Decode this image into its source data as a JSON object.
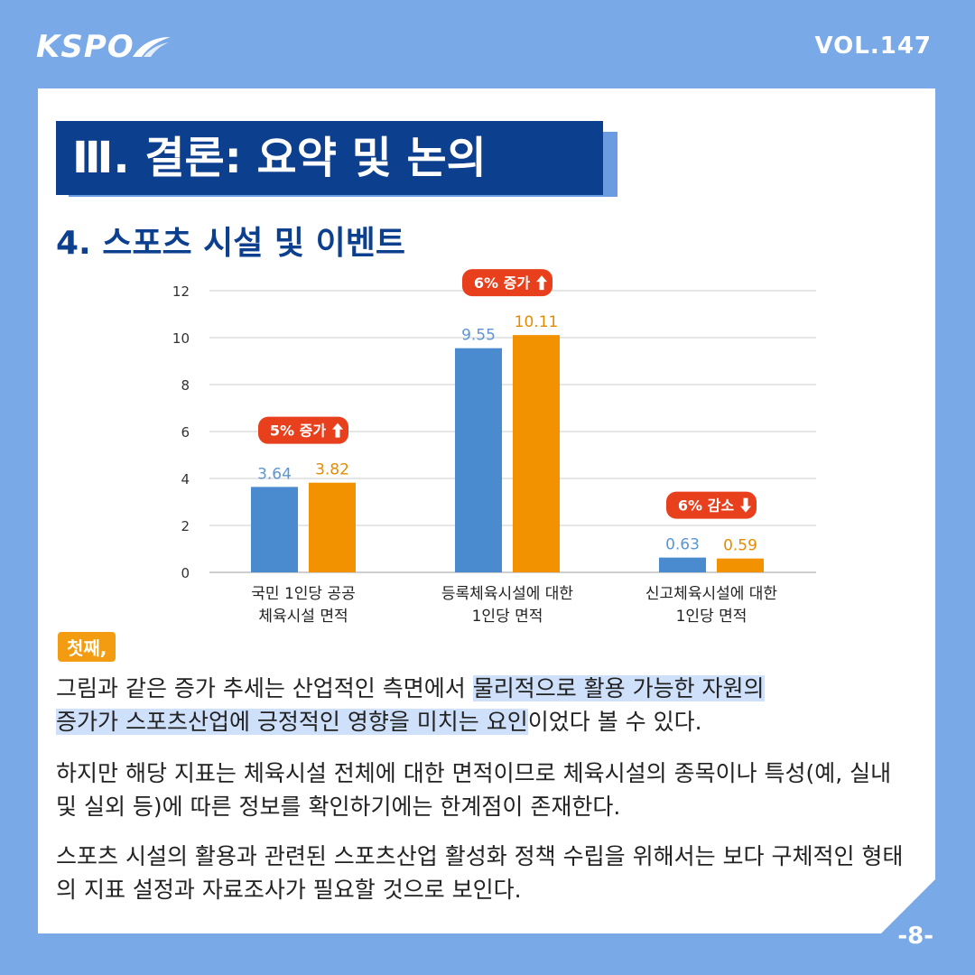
{
  "header": {
    "logo": "KSPO",
    "vol": "VOL.147"
  },
  "title": "Ⅲ. 결론: 요약 및 논의",
  "subtitle": "4. 스포츠 시설 및 이벤트",
  "chart_data": {
    "type": "bar",
    "categories": [
      [
        "국민 1인당 공공",
        "체육시설 면적"
      ],
      [
        "등록체육시설에 대한",
        "1인당 면적"
      ],
      [
        "신고체육시설에 대한",
        "1인당 면적"
      ]
    ],
    "series": [
      {
        "values": [
          3.64,
          9.55,
          0.63
        ],
        "color": "#4a8bd0",
        "label_color": "#5b95d6"
      },
      {
        "values": [
          3.82,
          10.11,
          0.59
        ],
        "color": "#f39200",
        "label_color": "#e58b00"
      }
    ],
    "value_labels": [
      [
        "3.64",
        "9.55",
        "0.63"
      ],
      [
        "3.82",
        "10.11",
        "0.59"
      ]
    ],
    "change_badges": [
      "5% 증가",
      "6% 증가",
      "6% 감소"
    ],
    "change_direction": [
      "up",
      "up",
      "down"
    ],
    "ylim": [
      0,
      12
    ],
    "yticks": [
      "0",
      "2",
      "4",
      "6",
      "8",
      "10",
      "12"
    ],
    "grid": true,
    "badge_color": "#e8401c"
  },
  "body": {
    "first_label": "첫째,",
    "p1_a": "그림과 같은 증가 추세는 산업적인 측면에서 ",
    "p1_hl1": "물리적으로 활용 가능한 자원의",
    "p1_hl2": "증가가 스포츠산업에 긍정적인 영향을 미치는 요인",
    "p1_b": "이었다 볼 수 있다.",
    "p2": "하지만 해당 지표는 체육시설 전체에 대한 면적이므로 체육시설의 종목이나 특성(예, 실내 및 실외 등)에 따른 정보를 확인하기에는 한계점이 존재한다.",
    "p3": "스포츠 시설의 활용과 관련된 스포츠산업 활성화 정책 수립을 위해서는 보다 구체적인 형태의 지표 설정과 자료조사가 필요할 것으로 보인다."
  },
  "footer": {
    "page": "-8-"
  }
}
